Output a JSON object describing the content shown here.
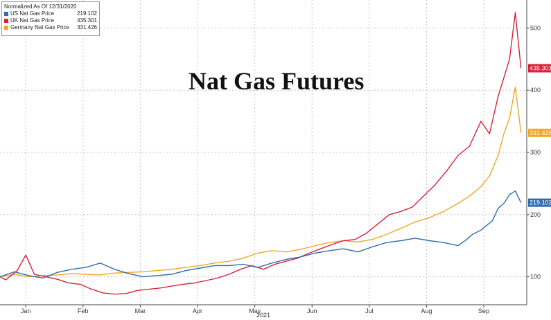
{
  "chart_data": {
    "type": "line",
    "title": "Nat Gas Futures",
    "xlabel": "2021",
    "ylabel": "",
    "legend_title": "Normalized As Of 12/31/2020",
    "legend_position": "top-left",
    "grid": true,
    "x_range": [
      0,
      9.2
    ],
    "ylim": [
      55,
      545
    ],
    "y_ticks": [
      100,
      200,
      300,
      400,
      500
    ],
    "x_tick_labels": [
      "Jan",
      "Feb",
      "Mar",
      "Apr",
      "May",
      "Jun",
      "Jul",
      "Aug",
      "Sep"
    ],
    "x_tick_positions": [
      0.45,
      1.45,
      2.45,
      3.45,
      4.45,
      5.45,
      6.45,
      7.45,
      8.45
    ],
    "series": [
      {
        "name": "US Nat Gas Price",
        "last_value": "219.102",
        "last_value_num": 219.102,
        "color": "#2f6db3",
        "x": [
          0,
          0.25,
          0.5,
          0.75,
          1,
          1.25,
          1.5,
          1.75,
          2,
          2.25,
          2.5,
          2.75,
          3,
          3.25,
          3.5,
          3.75,
          4,
          4.25,
          4.5,
          4.75,
          5,
          5.25,
          5.5,
          5.75,
          6,
          6.25,
          6.5,
          6.75,
          7,
          7.25,
          7.5,
          7.75,
          8,
          8.15,
          8.25,
          8.4,
          8.6,
          8.7,
          8.8,
          8.9,
          9.0,
          9.1
        ],
        "y": [
          100,
          108,
          102,
          98,
          107,
          112,
          115,
          122,
          112,
          105,
          100,
          102,
          104,
          110,
          114,
          118,
          118,
          120,
          115,
          122,
          128,
          132,
          138,
          142,
          145,
          140,
          148,
          155,
          158,
          162,
          158,
          155,
          150,
          160,
          168,
          175,
          190,
          210,
          218,
          232,
          238,
          219.102
        ]
      },
      {
        "name": "UK Nat Gas Price",
        "last_value": "435.301",
        "last_value_num": 435.301,
        "color": "#d9213a",
        "x": [
          0,
          0.1,
          0.3,
          0.45,
          0.6,
          0.8,
          1,
          1.2,
          1.4,
          1.6,
          1.8,
          2,
          2.2,
          2.4,
          2.6,
          2.8,
          3,
          3.2,
          3.4,
          3.6,
          3.8,
          4,
          4.2,
          4.4,
          4.6,
          4.8,
          5,
          5.2,
          5.4,
          5.6,
          5.8,
          6,
          6.2,
          6.4,
          6.6,
          6.8,
          7,
          7.2,
          7.4,
          7.6,
          7.8,
          8,
          8.2,
          8.4,
          8.55,
          8.7,
          8.8,
          8.9,
          9.0,
          9.05,
          9.1
        ],
        "y": [
          100,
          95,
          110,
          135,
          104,
          100,
          96,
          90,
          88,
          80,
          74,
          72,
          73,
          78,
          80,
          82,
          85,
          88,
          90,
          94,
          98,
          104,
          112,
          118,
          112,
          120,
          125,
          130,
          138,
          145,
          152,
          158,
          160,
          170,
          185,
          200,
          205,
          212,
          230,
          248,
          270,
          295,
          310,
          350,
          330,
          390,
          420,
          450,
          525,
          480,
          435.301
        ]
      },
      {
        "name": "Germany Nat Gas Price",
        "last_value": "331.426",
        "last_value_num": 331.426,
        "color": "#f0a823",
        "x": [
          0,
          0.25,
          0.5,
          0.75,
          1,
          1.25,
          1.5,
          1.75,
          2,
          2.25,
          2.5,
          2.75,
          3,
          3.25,
          3.5,
          3.75,
          4,
          4.25,
          4.5,
          4.75,
          5,
          5.25,
          5.5,
          5.75,
          6,
          6.25,
          6.5,
          6.75,
          7,
          7.25,
          7.5,
          7.75,
          8,
          8.2,
          8.4,
          8.55,
          8.7,
          8.8,
          8.9,
          9.0,
          9.1
        ],
        "y": [
          100,
          104,
          100,
          102,
          103,
          105,
          104,
          103,
          106,
          107,
          108,
          110,
          112,
          115,
          118,
          122,
          125,
          130,
          138,
          142,
          140,
          144,
          150,
          155,
          158,
          156,
          160,
          168,
          178,
          188,
          195,
          205,
          218,
          230,
          245,
          262,
          295,
          330,
          355,
          405,
          331.426
        ]
      }
    ]
  }
}
